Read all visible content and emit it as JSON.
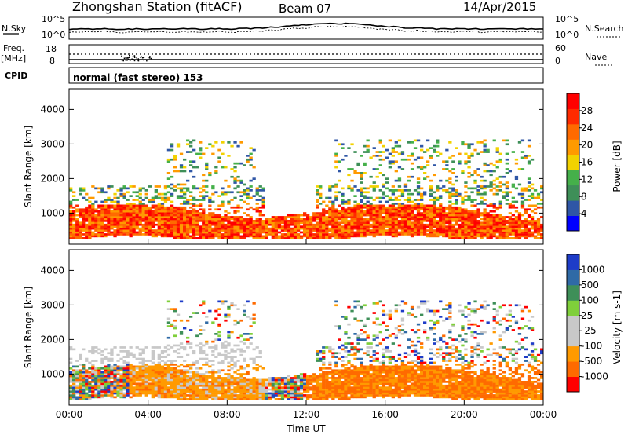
{
  "header": {
    "title": "Zhongshan Station (fitACF)",
    "beam": "Beam 07",
    "date": "14/Apr/2015"
  },
  "panels": {
    "nsky": {
      "label": "N.Sky",
      "tick_top": "10^5",
      "tick_bottom": "10^0",
      "right_label": "N.Search",
      "right_tick_top": "10^5",
      "right_tick_bottom": "10^0"
    },
    "freq": {
      "label_line1": "Freq.",
      "label_line2": "[MHz]",
      "tick_top": "18",
      "tick_bottom": "8",
      "right_label": "Nave",
      "right_tick_top": "60",
      "right_tick_bottom": "0"
    },
    "cpid": {
      "label": "CPID",
      "text": "normal (fast stereo) 153"
    }
  },
  "colors": {
    "power_scale": [
      "#0000ff",
      "#2f56a6",
      "#3e8f58",
      "#45b04a",
      "#f2d200",
      "#ff9a00",
      "#ff6a00",
      "#ff2a00",
      "#ff0000"
    ],
    "velocity_scale": [
      "#ff0000",
      "#ff6a00",
      "#ff9a00",
      "#c8c8c8",
      "#c8c8c8",
      "#7fcf3a",
      "#3e8f58",
      "#2f6aa6",
      "#1e3cc8"
    ]
  },
  "chart_data": [
    {
      "type": "heatmap",
      "name": "power",
      "xlabel": "Time UT",
      "ylabel": "Slant Range [km]",
      "x_ticks": [
        "00:00",
        "04:00",
        "08:00",
        "12:00",
        "16:00",
        "20:00",
        "00:00"
      ],
      "y_ticks": [
        1000,
        2000,
        3000,
        4000
      ],
      "ylim": [
        100,
        4600
      ],
      "colorbar": {
        "label": "Power [dB]",
        "ticks": [
          4,
          8,
          12,
          16,
          20,
          24,
          28
        ],
        "range": [
          0,
          32
        ]
      }
    },
    {
      "type": "heatmap",
      "name": "velocity",
      "xlabel": "Time UT",
      "ylabel": "Slant Range [km]",
      "x_ticks": [
        "00:00",
        "04:00",
        "08:00",
        "12:00",
        "16:00",
        "20:00",
        "00:00"
      ],
      "y_ticks": [
        1000,
        2000,
        3000,
        4000
      ],
      "ylim": [
        100,
        4600
      ],
      "colorbar": {
        "label": "Velocity [m s-1]",
        "ticks": [
          "-1000",
          "-500",
          "-100",
          "-25",
          "25",
          "100",
          "500",
          "1000"
        ]
      }
    }
  ]
}
